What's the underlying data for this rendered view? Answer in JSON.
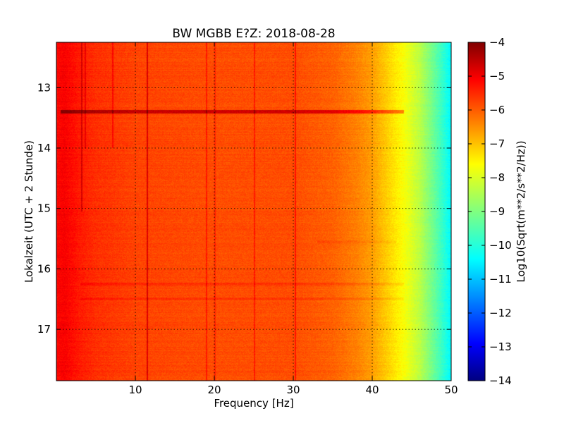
{
  "chart_data": {
    "type": "heatmap",
    "title": "BW MGBB E?Z: 2018-08-28",
    "xlabel": "Frequency [Hz]",
    "ylabel": "Lokalzeit (UTC + 2 Stunde)",
    "xlim": [
      0,
      50
    ],
    "ylim": [
      12.25,
      17.85
    ],
    "y_inverted": true,
    "x_ticks": [
      10,
      20,
      30,
      40,
      50
    ],
    "x_tick_labels": [
      "10",
      "20",
      "30",
      "40",
      "50"
    ],
    "y_ticks": [
      13,
      14,
      15,
      16,
      17
    ],
    "y_tick_labels": [
      "13",
      "14",
      "15",
      "16",
      "17"
    ],
    "grid": true,
    "colorbar": {
      "label": "Log10(Sqrt(m**2/s**2/Hz))",
      "colormap": "jet",
      "range": [
        -14,
        -4
      ],
      "ticks": [
        -4,
        -5,
        -6,
        -7,
        -8,
        -9,
        -10,
        -11,
        -12,
        -13,
        -14
      ],
      "tick_labels": [
        "−4",
        "−5",
        "−6",
        "−7",
        "−8",
        "−9",
        "−10",
        "−11",
        "−12",
        "−13",
        "−14"
      ]
    },
    "spectrum_profile": {
      "frequency_hz": [
        0,
        1,
        3,
        5,
        10,
        20,
        30,
        35,
        38,
        40,
        42,
        44,
        46,
        48,
        50
      ],
      "log10_amplitude": [
        -5.3,
        -5.2,
        -5.5,
        -5.7,
        -5.9,
        -6.0,
        -6.0,
        -6.2,
        -6.5,
        -6.8,
        -7.3,
        -7.8,
        -8.4,
        -9.3,
        -10.3
      ]
    },
    "vertical_lines_hz": [
      {
        "f": 3.2,
        "t0": 12.25,
        "t1": 15.05,
        "delta": 0.7
      },
      {
        "f": 3.7,
        "t0": 12.25,
        "t1": 14.0,
        "delta": 0.5
      },
      {
        "f": 7.1,
        "t0": 12.25,
        "t1": 14.0,
        "delta": 0.5
      },
      {
        "f": 11.5,
        "t0": 12.25,
        "t1": 17.85,
        "delta": 1.0
      },
      {
        "f": 19.0,
        "t0": 12.25,
        "t1": 17.85,
        "delta": 0.5
      },
      {
        "f": 20.1,
        "t0": 12.25,
        "t1": 17.85,
        "delta": 0.4
      },
      {
        "f": 25.1,
        "t0": 12.25,
        "t1": 17.85,
        "delta": 0.5
      },
      {
        "f": 30.3,
        "t0": 12.25,
        "t1": 17.85,
        "delta": 0.6
      }
    ],
    "horizontal_bands_hour": [
      {
        "t": 13.4,
        "f0": 0.5,
        "f1": 44,
        "delta": 1.2
      },
      {
        "t": 16.25,
        "f0": 3,
        "f1": 44,
        "delta": 0.3
      },
      {
        "t": 16.5,
        "f0": 3,
        "f1": 44,
        "delta": 0.25
      },
      {
        "t": 15.55,
        "f0": 33,
        "f1": 43,
        "delta": 0.2
      }
    ]
  }
}
